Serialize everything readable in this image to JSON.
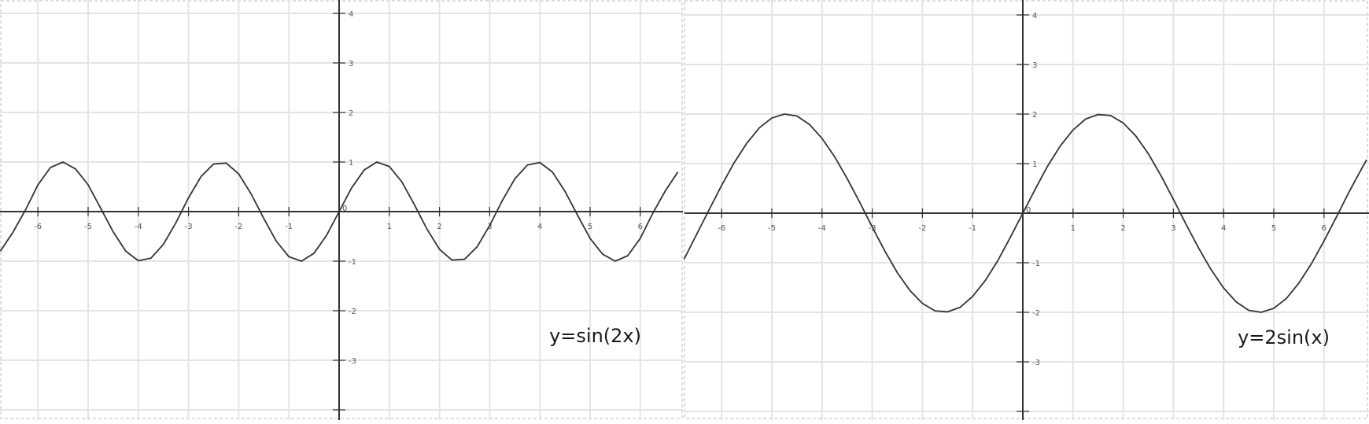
{
  "chart_data": [
    {
      "type": "line",
      "title": "",
      "xlabel": "",
      "ylabel": "",
      "xlim": [
        -6.75,
        6.75
      ],
      "ylim": [
        -4.1,
        4.2
      ],
      "grid": true,
      "x_ticks": [
        -6,
        -5,
        -4,
        -3,
        -2,
        -1,
        0,
        1,
        2,
        3,
        4,
        5,
        6
      ],
      "y_ticks": [
        -4,
        -3,
        -2,
        -1,
        0,
        1,
        2,
        3,
        4
      ],
      "x_tick_labels": [
        "-6",
        "-5",
        "-4",
        "-3",
        "-2",
        "-1",
        "0",
        "1",
        "2",
        "3",
        "4",
        "5",
        "6"
      ],
      "y_tick_labels": [
        "",
        "-3",
        "-2",
        "-1",
        "",
        "1",
        "2",
        "3",
        "4"
      ],
      "origin_label": "0",
      "annotation": "y=sin(2x)",
      "annotation_position": "bottom-right",
      "series": [
        {
          "x": [
            -6.75,
            -6.5,
            -6.25,
            -6.0,
            -5.75,
            -5.5,
            -5.25,
            -5.0,
            -4.75,
            -4.5,
            -4.25,
            -4.0,
            -3.75,
            -3.5,
            -3.25,
            -3.0,
            -2.75,
            -2.5,
            -2.25,
            -2.0,
            -1.75,
            -1.5,
            -1.25,
            -1.0,
            -0.75,
            -0.5,
            -0.25,
            0.0,
            0.25,
            0.5,
            0.75,
            1.0,
            1.25,
            1.5,
            1.75,
            2.0,
            2.25,
            2.5,
            2.75,
            3.0,
            3.25,
            3.5,
            3.75,
            4.0,
            4.25,
            4.5,
            4.75,
            5.0,
            5.25,
            5.5,
            5.75,
            6.0,
            6.25,
            6.5,
            6.75
          ],
          "y": [
            -0.8,
            -0.42,
            0.03,
            0.54,
            0.89,
            1.0,
            0.86,
            0.54,
            0.07,
            -0.41,
            -0.8,
            -0.99,
            -0.94,
            -0.66,
            -0.22,
            0.28,
            0.71,
            0.96,
            0.98,
            0.76,
            0.35,
            -0.14,
            -0.6,
            -0.91,
            -1.0,
            -0.84,
            -0.48,
            0.0,
            0.48,
            0.84,
            1.0,
            0.91,
            0.6,
            0.14,
            -0.35,
            -0.76,
            -0.98,
            -0.96,
            -0.71,
            -0.28,
            0.22,
            0.66,
            0.94,
            0.99,
            0.8,
            0.41,
            -0.07,
            -0.54,
            -0.86,
            -1.0,
            -0.89,
            -0.54,
            -0.03,
            0.42,
            0.8
          ]
        }
      ]
    },
    {
      "type": "line",
      "title": "",
      "xlabel": "",
      "ylabel": "",
      "xlim": [
        -6.75,
        6.85
      ],
      "ylim": [
        -4.1,
        4.2
      ],
      "grid": true,
      "x_ticks": [
        -6,
        -5,
        -4,
        -3,
        -2,
        -1,
        0,
        1,
        2,
        3,
        4,
        5,
        6
      ],
      "y_ticks": [
        -4,
        -3,
        -2,
        -1,
        0,
        1,
        2,
        3,
        4
      ],
      "x_tick_labels": [
        "-6",
        "-5",
        "-4",
        "-3",
        "-2",
        "-1",
        "0",
        "1",
        "2",
        "3",
        "4",
        "5",
        "6"
      ],
      "y_tick_labels": [
        "",
        "-3",
        "-2",
        "-1",
        "",
        "1",
        "2",
        "3",
        "4"
      ],
      "origin_label": "0",
      "annotation": "y=2sin(x)",
      "annotation_position": "bottom-right",
      "series": [
        {
          "x": [
            -6.75,
            -6.5,
            -6.25,
            -6.0,
            -5.75,
            -5.5,
            -5.25,
            -5.0,
            -4.75,
            -4.5,
            -4.25,
            -4.0,
            -3.75,
            -3.5,
            -3.25,
            -3.0,
            -2.75,
            -2.5,
            -2.25,
            -2.0,
            -1.75,
            -1.5,
            -1.25,
            -1.0,
            -0.75,
            -0.5,
            -0.25,
            0.0,
            0.25,
            0.5,
            0.75,
            1.0,
            1.25,
            1.5,
            1.75,
            2.0,
            2.25,
            2.5,
            2.75,
            3.0,
            3.25,
            3.5,
            3.75,
            4.0,
            4.25,
            4.5,
            4.75,
            5.0,
            5.25,
            5.5,
            5.75,
            6.0,
            6.25,
            6.5,
            6.75,
            6.85
          ],
          "y": [
            -0.93,
            -0.43,
            0.07,
            0.56,
            1.02,
            1.41,
            1.72,
            1.92,
            2.0,
            1.96,
            1.79,
            1.51,
            1.14,
            0.7,
            0.22,
            -0.28,
            -0.76,
            -1.2,
            -1.56,
            -1.82,
            -1.97,
            -1.99,
            -1.9,
            -1.68,
            -1.36,
            -0.96,
            -0.49,
            0.0,
            0.49,
            0.96,
            1.36,
            1.68,
            1.9,
            1.99,
            1.97,
            1.82,
            1.56,
            1.2,
            0.76,
            0.28,
            -0.22,
            -0.7,
            -1.14,
            -1.51,
            -1.79,
            -1.96,
            -2.0,
            -1.92,
            -1.72,
            -1.41,
            -1.02,
            -0.56,
            -0.07,
            0.43,
            0.9,
            1.08
          ]
        }
      ]
    }
  ]
}
